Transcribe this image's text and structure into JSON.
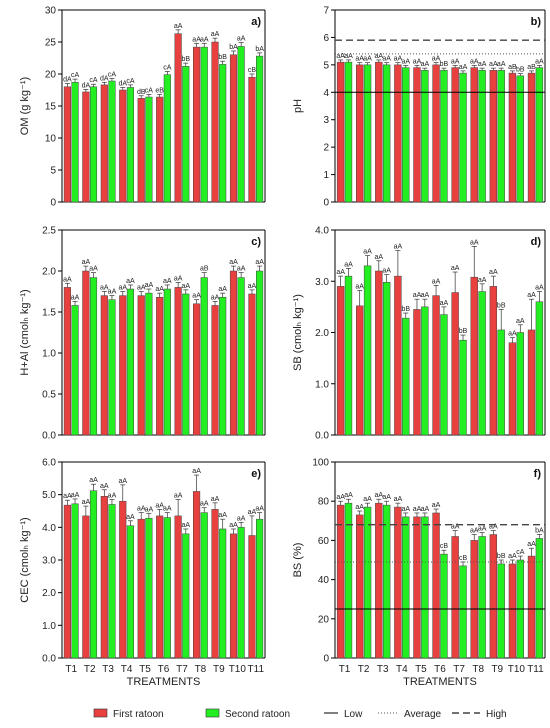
{
  "colors": {
    "first": "#e8403f",
    "second": "#22ee22",
    "axis": "#000000",
    "error": "#333333"
  },
  "legend": {
    "first": "First ratoon",
    "second": "Second ratoon",
    "low": "Low",
    "average": "Average",
    "high": "High"
  },
  "chart_data": [
    {
      "type": "bar",
      "panel": "a)",
      "ylabel": "OM (g kg⁻¹)",
      "ylim": [
        0,
        30
      ],
      "yticks": [
        "0",
        "5",
        "10",
        "15",
        "20",
        "25",
        "30"
      ],
      "ytick_values": [
        0,
        5,
        10,
        15,
        20,
        25,
        30
      ],
      "categories": [
        "T1",
        "T2",
        "T3",
        "T4",
        "T5",
        "T6",
        "T7",
        "T8",
        "T9",
        "T10",
        "T11"
      ],
      "xlabel": "TREATMENTS",
      "show_xticks": false,
      "series": [
        {
          "name": "First ratoon",
          "values": [
            18.0,
            17.2,
            18.3,
            17.5,
            16.2,
            16.4,
            26.3,
            24.2,
            25.0,
            23.0,
            19.5
          ],
          "errors": [
            0.5,
            0.4,
            0.4,
            0.4,
            0.4,
            0.4,
            0.6,
            0.6,
            0.6,
            0.6,
            0.5
          ],
          "labels": [
            "dA",
            "dA",
            "dA",
            "dA",
            "dB",
            "eB",
            "aA",
            "aA",
            "aA",
            "bA",
            "cB"
          ]
        },
        {
          "name": "Second ratoon",
          "values": [
            18.7,
            18.0,
            18.9,
            17.9,
            16.4,
            19.9,
            21.2,
            24.2,
            21.5,
            24.3,
            22.8
          ],
          "errors": [
            0.5,
            0.4,
            0.4,
            0.4,
            0.4,
            0.5,
            0.5,
            0.6,
            0.5,
            0.6,
            0.5
          ],
          "labels": [
            "cA",
            "cA",
            "cA",
            "cA",
            "cA",
            "cA",
            "bB",
            "aA",
            "bB",
            "aA",
            "bA"
          ]
        }
      ],
      "reference_lines": []
    },
    {
      "type": "bar",
      "panel": "b)",
      "ylabel": "pH",
      "ylim": [
        0,
        7
      ],
      "yticks": [
        "0",
        "1",
        "2",
        "3",
        "4",
        "5",
        "6",
        "7"
      ],
      "ytick_values": [
        0,
        1,
        2,
        3,
        4,
        5,
        6,
        7
      ],
      "categories": [
        "T1",
        "T2",
        "T3",
        "T4",
        "T5",
        "T6",
        "T7",
        "T8",
        "T9",
        "T10",
        "T11"
      ],
      "xlabel": "TREATMENTS",
      "show_xticks": false,
      "series": [
        {
          "name": "First ratoon",
          "values": [
            5.1,
            5.0,
            5.1,
            5.0,
            4.9,
            5.0,
            4.9,
            4.9,
            4.8,
            4.7,
            4.7
          ],
          "errors": [
            0.08,
            0.08,
            0.08,
            0.08,
            0.08,
            0.08,
            0.08,
            0.08,
            0.08,
            0.08,
            0.08
          ],
          "labels": [
            "aA",
            "aA",
            "aA",
            "aA",
            "aA",
            "aA",
            "aA",
            "aA",
            "aA",
            "aB",
            "aB"
          ]
        },
        {
          "name": "Second ratoon",
          "values": [
            5.1,
            5.0,
            5.0,
            4.9,
            4.8,
            4.8,
            4.7,
            4.8,
            4.8,
            4.6,
            4.9
          ],
          "errors": [
            0.08,
            0.08,
            0.08,
            0.08,
            0.08,
            0.08,
            0.08,
            0.08,
            0.08,
            0.08,
            0.08
          ],
          "labels": [
            "aA",
            "aA",
            "aA",
            "aA",
            "aA",
            "bB",
            "aA",
            "aA",
            "aA",
            "bB",
            "aA"
          ]
        }
      ],
      "reference_lines": [
        {
          "kind": "low",
          "value": 4.0
        },
        {
          "kind": "average",
          "value": 5.4
        },
        {
          "kind": "high",
          "value": 5.9
        }
      ]
    },
    {
      "type": "bar",
      "panel": "c)",
      "ylabel": "H+Al (cmolₕ kg⁻¹)",
      "ylim": [
        0,
        2.5
      ],
      "yticks": [
        "0.0",
        "0.5",
        "1.0",
        "1.5",
        "2.0",
        "2.5"
      ],
      "ytick_values": [
        0,
        0.5,
        1.0,
        1.5,
        2.0,
        2.5
      ],
      "categories": [
        "T1",
        "T2",
        "T3",
        "T4",
        "T5",
        "T6",
        "T7",
        "T8",
        "T9",
        "T10",
        "T11"
      ],
      "xlabel": "TREATMENTS",
      "show_xticks": false,
      "series": [
        {
          "name": "First ratoon",
          "values": [
            1.8,
            2.0,
            1.7,
            1.7,
            1.7,
            1.68,
            1.8,
            1.6,
            1.58,
            2.0,
            1.72
          ],
          "errors": [
            0.05,
            0.06,
            0.05,
            0.05,
            0.05,
            0.05,
            0.06,
            0.05,
            0.05,
            0.06,
            0.05
          ],
          "labels": [
            "aA",
            "aA",
            "aA",
            "aA",
            "aA",
            "aA",
            "aA",
            "aA",
            "aA",
            "aA",
            "aA"
          ]
        },
        {
          "name": "Second ratoon",
          "values": [
            1.58,
            1.92,
            1.65,
            1.78,
            1.73,
            1.78,
            1.72,
            1.92,
            1.68,
            1.92,
            2.0
          ],
          "errors": [
            0.05,
            0.06,
            0.05,
            0.05,
            0.05,
            0.05,
            0.05,
            0.06,
            0.05,
            0.06,
            0.06
          ],
          "labels": [
            "aA",
            "aA",
            "aA",
            "aA",
            "aA",
            "aA",
            "aA",
            "aB",
            "aA",
            "aA",
            "aA"
          ]
        }
      ],
      "reference_lines": []
    },
    {
      "type": "bar",
      "panel": "d)",
      "ylabel": "SB (cmolₕ kg⁻¹)",
      "ylim": [
        0,
        4
      ],
      "yticks": [
        "0.0",
        "1.0",
        "2.0",
        "3.0",
        "4.0"
      ],
      "ytick_values": [
        0,
        1,
        2,
        3,
        4
      ],
      "categories": [
        "T1",
        "T2",
        "T3",
        "T4",
        "T5",
        "T6",
        "T7",
        "T8",
        "T9",
        "T10",
        "T11"
      ],
      "xlabel": "TREATMENTS",
      "show_xticks": false,
      "series": [
        {
          "name": "First ratoon",
          "values": [
            2.9,
            2.52,
            3.2,
            3.1,
            2.45,
            2.72,
            2.78,
            3.08,
            2.9,
            1.8,
            2.05
          ],
          "errors": [
            0.2,
            0.3,
            0.2,
            0.5,
            0.2,
            0.2,
            0.4,
            0.6,
            0.2,
            0.1,
            0.6
          ],
          "labels": [
            "aA",
            "aA",
            "aA",
            "aA",
            "aA",
            "aA",
            "aA",
            "aA",
            "aA",
            "aA",
            "aA"
          ]
        },
        {
          "name": "Second ratoon",
          "values": [
            3.1,
            3.3,
            2.98,
            2.28,
            2.5,
            2.35,
            1.85,
            2.8,
            2.05,
            2.0,
            2.6
          ],
          "errors": [
            0.15,
            0.2,
            0.15,
            0.1,
            0.15,
            0.15,
            0.1,
            0.15,
            0.4,
            0.15,
            0.2
          ],
          "labels": [
            "aA",
            "aA",
            "aA",
            "bB",
            "aA",
            "aA",
            "bB",
            "aA",
            "bB",
            "aA",
            "aA"
          ]
        }
      ],
      "reference_lines": []
    },
    {
      "type": "bar",
      "panel": "e)",
      "ylabel": "CEC (cmolₕ kg⁻¹)",
      "ylim": [
        0,
        6
      ],
      "yticks": [
        "0.0",
        "1.0",
        "2.0",
        "3.0",
        "4.0",
        "5.0",
        "6.0"
      ],
      "ytick_values": [
        0,
        1,
        2,
        3,
        4,
        5,
        6
      ],
      "categories": [
        "T1",
        "T2",
        "T3",
        "T4",
        "T5",
        "T6",
        "T7",
        "T8",
        "T9",
        "T10",
        "T11"
      ],
      "xlabel": "TREATMENTS",
      "show_xticks": true,
      "series": [
        {
          "name": "First ratoon",
          "values": [
            4.68,
            4.35,
            4.95,
            4.8,
            4.25,
            4.35,
            4.35,
            5.1,
            4.55,
            3.8,
            3.75
          ],
          "errors": [
            0.15,
            0.3,
            0.2,
            0.5,
            0.2,
            0.2,
            0.5,
            0.5,
            0.2,
            0.15,
            0.6
          ],
          "labels": [
            "aA",
            "aA",
            "aA",
            "aA",
            "aA",
            "aA",
            "aA",
            "aA",
            "aA",
            "aA",
            "aA"
          ]
        },
        {
          "name": "Second ratoon",
          "values": [
            4.72,
            5.12,
            4.7,
            4.05,
            4.28,
            4.3,
            3.8,
            4.45,
            3.95,
            4.0,
            4.25
          ],
          "errors": [
            0.15,
            0.2,
            0.15,
            0.15,
            0.15,
            0.15,
            0.15,
            0.15,
            0.3,
            0.15,
            0.2
          ],
          "labels": [
            "aA",
            "aA",
            "aA",
            "aA",
            "aA",
            "aA",
            "aA",
            "aA",
            "aA",
            "aA",
            "aA"
          ]
        }
      ],
      "reference_lines": []
    },
    {
      "type": "bar",
      "panel": "f)",
      "ylabel": "BS (%)",
      "ylim": [
        0,
        100
      ],
      "yticks": [
        "0",
        "20",
        "40",
        "60",
        "80",
        "100"
      ],
      "ytick_values": [
        0,
        20,
        40,
        60,
        80,
        100
      ],
      "categories": [
        "T1",
        "T2",
        "T3",
        "T4",
        "T5",
        "T6",
        "T7",
        "T8",
        "T9",
        "T10",
        "T11"
      ],
      "xlabel": "TREATMENTS",
      "show_xticks": true,
      "series": [
        {
          "name": "First ratoon",
          "values": [
            78,
            73,
            79,
            77,
            72,
            74,
            62,
            60,
            63,
            48,
            52
          ],
          "errors": [
            2,
            2,
            2,
            2,
            2,
            2,
            3,
            3,
            2,
            2,
            4
          ],
          "labels": [
            "aA",
            "aA",
            "aA",
            "aA",
            "aA",
            "aA",
            "aA",
            "aA",
            "aA",
            "aA",
            "aA"
          ]
        },
        {
          "name": "Second ratoon",
          "values": [
            79,
            77,
            78,
            72,
            72,
            53,
            47,
            62,
            48,
            50,
            61
          ],
          "errors": [
            2,
            2,
            2,
            2,
            2,
            2,
            2,
            2,
            2,
            2,
            2
          ],
          "labels": [
            "aA",
            "aA",
            "aA",
            "aA",
            "aA",
            "cB",
            "cB",
            "aA",
            "bB",
            "cA",
            "bA"
          ]
        }
      ],
      "reference_lines": [
        {
          "kind": "low",
          "value": 25
        },
        {
          "kind": "average",
          "value": 49
        },
        {
          "kind": "high",
          "value": 68
        }
      ]
    }
  ]
}
